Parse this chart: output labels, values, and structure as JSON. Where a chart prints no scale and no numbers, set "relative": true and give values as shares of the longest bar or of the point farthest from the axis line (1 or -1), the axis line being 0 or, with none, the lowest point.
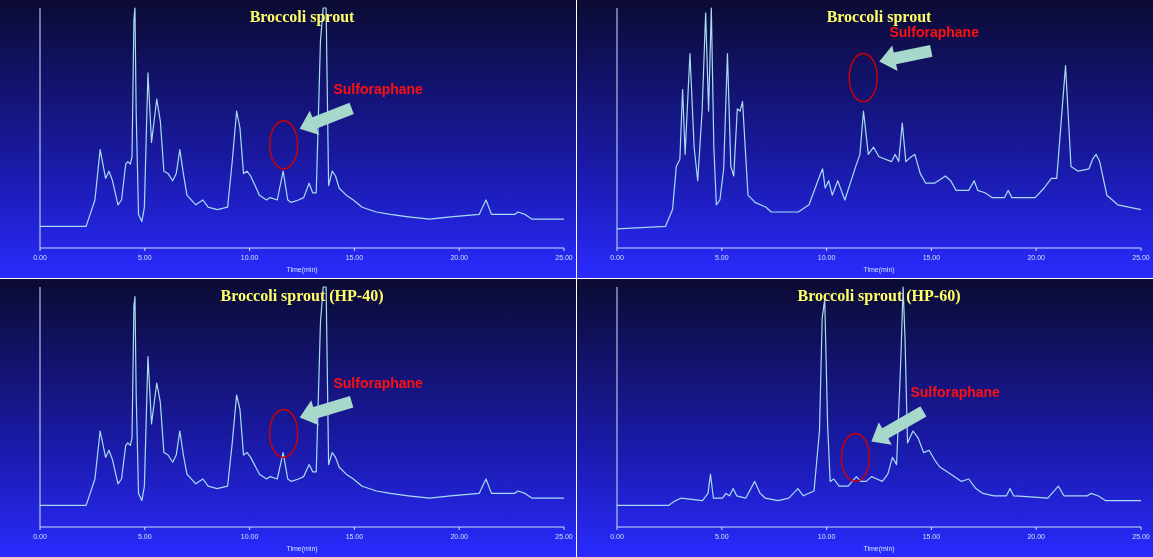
{
  "chart_data": [
    {
      "type": "line",
      "title": "Broccoli sprout",
      "xlabel": "Time(min)",
      "relative": true,
      "color": "#a8dcf2",
      "xlim": [
        0,
        25
      ],
      "xticks": [
        {
          "value": 0,
          "label": "0.00"
        },
        {
          "value": 5,
          "label": "5.00"
        },
        {
          "value": 10,
          "label": "10.00"
        },
        {
          "value": 15,
          "label": "15.00"
        },
        {
          "value": 20,
          "label": "20.00"
        },
        {
          "value": 25,
          "label": "25.00"
        }
      ],
      "x": [
        0,
        2.2,
        2.62,
        2.87,
        3.13,
        3.29,
        3.46,
        3.72,
        3.89,
        4.09,
        4.19,
        4.31,
        4.39,
        4.48,
        4.53,
        4.59,
        4.7,
        4.86,
        4.98,
        5.15,
        5.32,
        5.57,
        5.74,
        5.91,
        6.11,
        6.33,
        6.5,
        6.67,
        6.84,
        7.01,
        7.43,
        7.77,
        8.02,
        8.45,
        8.95,
        9.16,
        9.38,
        9.54,
        9.71,
        9.88,
        10.05,
        10.47,
        10.81,
        10.98,
        11.32,
        11.6,
        11.82,
        11.99,
        12.33,
        12.58,
        12.84,
        13.01,
        13.18,
        13.38,
        13.51,
        13.65,
        13.77,
        13.94,
        14.1,
        14.27,
        14.61,
        14.95,
        15.37,
        16.05,
        16.72,
        17.57,
        18.58,
        19.59,
        20.95,
        21.28,
        21.54,
        22.64,
        22.8,
        23.14,
        23.48,
        25
      ],
      "values": [
        0.09,
        0.09,
        0.2,
        0.41,
        0.29,
        0.32,
        0.28,
        0.18,
        0.2,
        0.35,
        0.36,
        0.35,
        0.38,
        0.95,
        1,
        0.56,
        0.14,
        0.11,
        0.17,
        0.73,
        0.44,
        0.62,
        0.53,
        0.32,
        0.31,
        0.28,
        0.31,
        0.41,
        0.31,
        0.22,
        0.18,
        0.2,
        0.17,
        0.16,
        0.17,
        0.35,
        0.57,
        0.5,
        0.31,
        0.32,
        0.3,
        0.22,
        0.2,
        0.21,
        0.2,
        0.32,
        0.2,
        0.19,
        0.2,
        0.21,
        0.27,
        0.23,
        0.23,
        0.86,
        1,
        1,
        0.26,
        0.32,
        0.3,
        0.25,
        0.22,
        0.2,
        0.17,
        0.15,
        0.14,
        0.13,
        0.12,
        0.13,
        0.14,
        0.2,
        0.14,
        0.14,
        0.15,
        0.14,
        0.12,
        0.12
      ],
      "annotations": [
        "Sulforaphane"
      ]
    },
    {
      "type": "line",
      "title": "Broccoli sprout",
      "xlabel": "Time(min)",
      "relative": true,
      "color": "#a8dcf2",
      "xlim": [
        0,
        25
      ],
      "xticks": [
        {
          "value": 0,
          "label": "0.00"
        },
        {
          "value": 5,
          "label": "5.00"
        },
        {
          "value": 10,
          "label": "10.00"
        },
        {
          "value": 15,
          "label": "15.00"
        },
        {
          "value": 20,
          "label": "20.00"
        },
        {
          "value": 25,
          "label": "25.00"
        }
      ],
      "x": [
        0,
        2.31,
        2.65,
        2.83,
        3.0,
        3.13,
        3.25,
        3.48,
        3.68,
        3.85,
        4.06,
        4.23,
        4.37,
        4.5,
        4.62,
        4.74,
        4.91,
        5.09,
        5.27,
        5.43,
        5.57,
        5.74,
        5.87,
        5.99,
        6.25,
        6.59,
        7.11,
        7.36,
        8.65,
        9.16,
        9.67,
        9.81,
        9.93,
        10.1,
        10.27,
        10.53,
        10.7,
        10.87,
        11.39,
        11.59,
        11.76,
        11.99,
        12.24,
        12.5,
        13.1,
        13.27,
        13.44,
        13.61,
        13.78,
        14.04,
        14.21,
        14.47,
        14.73,
        15.15,
        15.67,
        15.92,
        16.18,
        16.78,
        17.04,
        17.21,
        17.55,
        17.89,
        18.49,
        18.66,
        18.84,
        19.95,
        20.38,
        20.72,
        20.98,
        21.4,
        21.66,
        22.0,
        22.52,
        22.69,
        22.86,
        23.03,
        23.37,
        23.89,
        25
      ],
      "values": [
        0.08,
        0.09,
        0.16,
        0.34,
        0.37,
        0.66,
        0.39,
        0.81,
        0.42,
        0.28,
        0.57,
        0.98,
        0.57,
        1,
        0.42,
        0.18,
        0.2,
        0.33,
        0.81,
        0.34,
        0.3,
        0.58,
        0.57,
        0.61,
        0.22,
        0.19,
        0.17,
        0.15,
        0.15,
        0.18,
        0.3,
        0.33,
        0.25,
        0.28,
        0.22,
        0.28,
        0.24,
        0.2,
        0.34,
        0.39,
        0.57,
        0.39,
        0.42,
        0.38,
        0.36,
        0.39,
        0.36,
        0.52,
        0.36,
        0.38,
        0.39,
        0.31,
        0.27,
        0.27,
        0.3,
        0.28,
        0.24,
        0.24,
        0.28,
        0.24,
        0.23,
        0.21,
        0.21,
        0.24,
        0.21,
        0.21,
        0.25,
        0.29,
        0.29,
        0.76,
        0.34,
        0.32,
        0.33,
        0.37,
        0.39,
        0.36,
        0.22,
        0.18,
        0.16
      ],
      "annotations": [
        "Sulforaphane"
      ]
    },
    {
      "type": "line",
      "title": "Broccoli sprout (HP-40)",
      "xlabel": "Time(min)",
      "relative": true,
      "color": "#a8dcf2",
      "xlim": [
        0,
        25
      ],
      "xticks": [
        {
          "value": 0,
          "label": "0.00"
        },
        {
          "value": 5,
          "label": "5.00"
        },
        {
          "value": 10,
          "label": "10.00"
        },
        {
          "value": 15,
          "label": "15.00"
        },
        {
          "value": 20,
          "label": "20.00"
        },
        {
          "value": 25,
          "label": "25.00"
        }
      ],
      "x": [
        0,
        2.2,
        2.62,
        2.87,
        3.13,
        3.29,
        3.46,
        3.72,
        3.89,
        4.09,
        4.19,
        4.31,
        4.39,
        4.48,
        4.53,
        4.59,
        4.7,
        4.86,
        4.98,
        5.15,
        5.32,
        5.57,
        5.74,
        5.91,
        6.11,
        6.33,
        6.5,
        6.67,
        6.84,
        7.01,
        7.43,
        7.77,
        8.02,
        8.45,
        8.95,
        9.16,
        9.38,
        9.54,
        9.71,
        9.88,
        10.05,
        10.47,
        10.81,
        10.98,
        11.32,
        11.6,
        11.82,
        11.99,
        12.33,
        12.58,
        12.84,
        13.01,
        13.18,
        13.38,
        13.51,
        13.65,
        13.77,
        13.94,
        14.1,
        14.27,
        14.61,
        14.95,
        15.37,
        16.05,
        16.72,
        17.57,
        18.58,
        19.59,
        20.95,
        21.28,
        21.54,
        22.64,
        22.8,
        23.14,
        23.48,
        25
      ],
      "values": [
        0.09,
        0.09,
        0.2,
        0.4,
        0.29,
        0.32,
        0.28,
        0.18,
        0.2,
        0.34,
        0.35,
        0.34,
        0.37,
        0.92,
        0.96,
        0.55,
        0.14,
        0.11,
        0.17,
        0.71,
        0.43,
        0.6,
        0.52,
        0.31,
        0.3,
        0.27,
        0.3,
        0.4,
        0.3,
        0.22,
        0.18,
        0.2,
        0.17,
        0.16,
        0.17,
        0.34,
        0.55,
        0.49,
        0.3,
        0.31,
        0.29,
        0.22,
        0.2,
        0.21,
        0.2,
        0.31,
        0.2,
        0.19,
        0.2,
        0.21,
        0.26,
        0.23,
        0.23,
        0.85,
        1,
        1,
        0.26,
        0.31,
        0.29,
        0.25,
        0.22,
        0.2,
        0.17,
        0.15,
        0.14,
        0.13,
        0.12,
        0.13,
        0.14,
        0.2,
        0.14,
        0.14,
        0.15,
        0.14,
        0.12,
        0.12
      ],
      "annotations": [
        "Sulforaphane"
      ]
    },
    {
      "type": "line",
      "title": "Broccoli sprout (HP-60)",
      "xlabel": "Time(min)",
      "relative": true,
      "color": "#a8dcf2",
      "xlim": [
        0,
        25
      ],
      "xticks": [
        {
          "value": 0,
          "label": "0.00"
        },
        {
          "value": 5,
          "label": "5.00"
        },
        {
          "value": 10,
          "label": "10.00"
        },
        {
          "value": 15,
          "label": "15.00"
        },
        {
          "value": 20,
          "label": "20.00"
        },
        {
          "value": 25,
          "label": "25.00"
        }
      ],
      "x": [
        0,
        2.45,
        2.8,
        3.05,
        4.08,
        4.34,
        4.46,
        4.6,
        5.03,
        5.2,
        5.37,
        5.54,
        5.71,
        6.14,
        6.57,
        6.83,
        7.08,
        7.68,
        8.2,
        8.63,
        8.89,
        9.4,
        9.66,
        9.79,
        9.91,
        10.05,
        10.17,
        10.34,
        10.6,
        11.03,
        11.42,
        11.63,
        11.89,
        12.14,
        12.4,
        12.66,
        12.92,
        13.14,
        13.34,
        13.55,
        13.65,
        13.74,
        13.86,
        14.12,
        14.37,
        14.63,
        14.89,
        15.15,
        15.4,
        15.75,
        16.09,
        16.43,
        16.78,
        17.12,
        17.46,
        17.98,
        18.58,
        18.75,
        18.92,
        20.55,
        21.06,
        21.32,
        22.44,
        22.61,
        22.95,
        23.3,
        25
      ],
      "values": [
        0.09,
        0.09,
        0.11,
        0.12,
        0.11,
        0.14,
        0.22,
        0.12,
        0.12,
        0.14,
        0.13,
        0.16,
        0.13,
        0.12,
        0.19,
        0.14,
        0.12,
        0.11,
        0.12,
        0.16,
        0.13,
        0.15,
        0.4,
        0.87,
        0.95,
        0.42,
        0.19,
        0.2,
        0.17,
        0.17,
        0.21,
        0.19,
        0.19,
        0.21,
        0.2,
        0.19,
        0.22,
        0.29,
        0.26,
        0.72,
        1,
        0.79,
        0.35,
        0.4,
        0.37,
        0.31,
        0.32,
        0.28,
        0.25,
        0.23,
        0.21,
        0.19,
        0.2,
        0.16,
        0.14,
        0.13,
        0.13,
        0.16,
        0.13,
        0.12,
        0.17,
        0.13,
        0.13,
        0.14,
        0.13,
        0.11,
        0.11
      ],
      "annotations": [
        "Sulforaphane"
      ]
    }
  ]
}
